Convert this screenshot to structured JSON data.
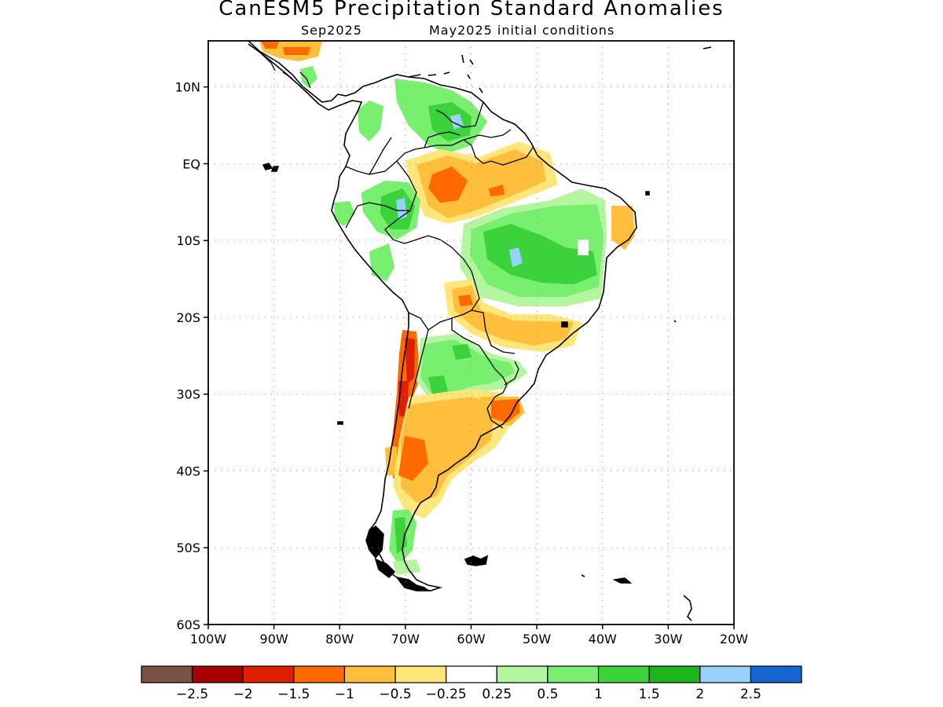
{
  "title": "CanESM5 Precipitation Standard Anomalies",
  "subtitle_left": "Sep2025",
  "subtitle_right": "May2025 initial conditions",
  "lat_labels": [
    "10N",
    "EQ",
    "10S",
    "20S",
    "30S",
    "40S",
    "50S",
    "60S"
  ],
  "lat_values": [
    10,
    0,
    -10,
    -20,
    -30,
    -40,
    -50,
    -60
  ],
  "lon_labels": [
    "100W",
    "90W",
    "80W",
    "70W",
    "60W",
    "50W",
    "40W",
    "30W",
    "20W"
  ],
  "lon_values": [
    -100,
    -90,
    -80,
    -70,
    -60,
    -50,
    -40,
    -30,
    -20
  ],
  "map_extent": {
    "lon": [
      -100,
      -20
    ],
    "lat": [
      -60,
      16
    ]
  },
  "colorbar": {
    "colors": [
      "#7a5245",
      "#a50000",
      "#e01e00",
      "#ff6a00",
      "#ffbe3c",
      "#ffe67a",
      "#ffffff",
      "#b4f5a0",
      "#78ef6e",
      "#3cd23c",
      "#1eb41e",
      "#96d2fa",
      "#1464d2"
    ],
    "labels": [
      "-2.5",
      "-2",
      "-1.5",
      "-1",
      "-0.5",
      "-0.25",
      "0.25",
      "0.5",
      "1",
      "1.5",
      "2",
      "2.5"
    ]
  }
}
